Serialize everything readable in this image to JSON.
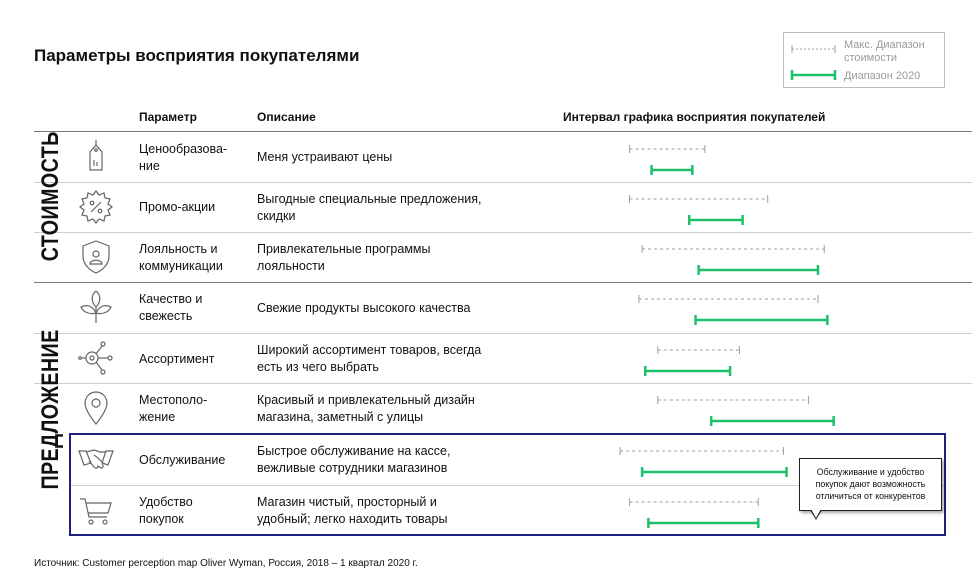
{
  "title": "Параметры восприятия покупателями",
  "legend": {
    "max_range": "Макс. Диапазон\nстоимости",
    "range_2020": "Диапазон 2020",
    "max_color": "#9e9e9e",
    "range_color": "#1ec06a"
  },
  "headers": {
    "param": "Параметр",
    "desc": "Описание",
    "interval": "Интервал графика восприятия покупателей"
  },
  "categories": {
    "cost": "СТОИМОСТЬ",
    "offer": "ПРЕДЛОЖЕНИЕ"
  },
  "rows": [
    {
      "param": "Ценообразова-\nние",
      "desc": "Меня устраивают цены",
      "icon": "price-tag-icon"
    },
    {
      "param": "Промо-акции",
      "desc": "Выгодные специальные предложения,\nскидки",
      "icon": "discount-badge-icon"
    },
    {
      "param": "Лояльность и\nкоммуникации",
      "desc": "Привлекательные программы\nлояльности",
      "icon": "loyalty-shield-icon"
    },
    {
      "param": "Качество и\nсвежесть",
      "desc": "Свежие продукты высокого качества",
      "icon": "leaf-icon"
    },
    {
      "param": "Ассортимент",
      "desc": "Широкий ассортимент товаров, всегда\nесть из чего выбрать",
      "icon": "assortment-network-icon"
    },
    {
      "param": "Местополо-\nжение",
      "desc": "Красивый и привлекательный дизайн\nмагазина, заметный с улицы",
      "icon": "location-pin-icon"
    },
    {
      "param": "Обслуживание",
      "desc": "Быстрое обслуживание на кассе,\nвежливые сотрудники магазинов",
      "icon": "handshake-icon"
    },
    {
      "param": "Удобство\nпокупок",
      "desc": "Магазин чистый, просторный и\nудобный;  легко находить товары",
      "icon": "shopping-cart-icon"
    }
  ],
  "callout": "Обслуживание и удобство покупок дают возможность отличиться от конкурентов",
  "source": "Источник: Customer perception map Oliver Wyman, Россия, 2018  – 1 квартал 2020 г.",
  "chart_data": {
    "type": "range",
    "categories": [
      "Ценообразование",
      "Промо-акции",
      "Лояльность и коммуникации",
      "Качество и свежесть",
      "Ассортимент",
      "Местоположение",
      "Обслуживание",
      "Удобство покупок"
    ],
    "series": [
      {
        "name": "Макс. Диапазон стоимости",
        "style": "dashed",
        "ranges": [
          [
            0.04,
            0.28
          ],
          [
            0.04,
            0.48
          ],
          [
            0.08,
            0.66
          ],
          [
            0.07,
            0.64
          ],
          [
            0.13,
            0.39
          ],
          [
            0.13,
            0.61
          ],
          [
            0.01,
            0.53
          ],
          [
            0.04,
            0.45
          ]
        ]
      },
      {
        "name": "Диапазон 2020",
        "style": "solid",
        "ranges": [
          [
            0.11,
            0.24
          ],
          [
            0.23,
            0.4
          ],
          [
            0.26,
            0.64
          ],
          [
            0.25,
            0.67
          ],
          [
            0.09,
            0.36
          ],
          [
            0.3,
            0.69
          ],
          [
            0.08,
            0.54
          ],
          [
            0.1,
            0.45
          ]
        ]
      }
    ],
    "xlim": [
      0,
      1
    ]
  }
}
